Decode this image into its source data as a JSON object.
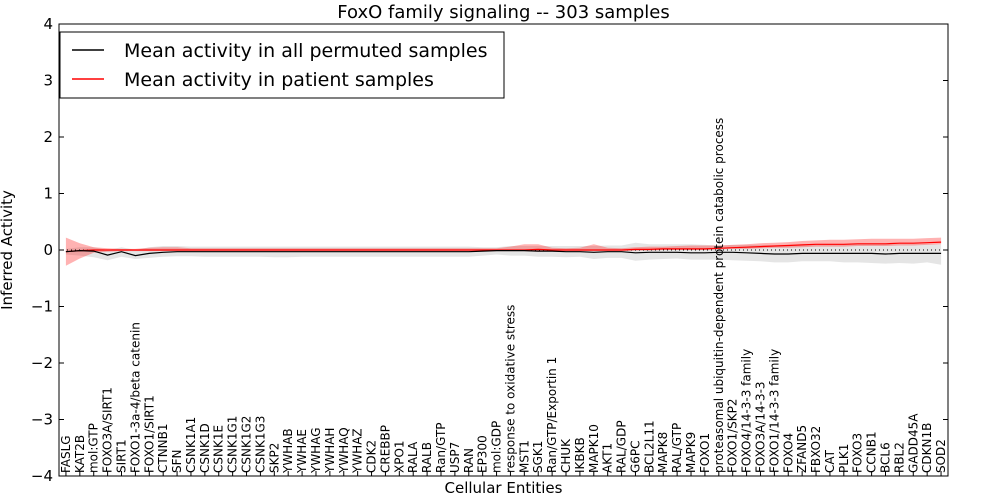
{
  "chart_data": {
    "type": "line",
    "title": "FoxO family signaling -- 303 samples",
    "xlabel": "Cellular Entities",
    "ylabel": "Inferred Activity",
    "ylim": [
      -4,
      4
    ],
    "yticks": [
      -4,
      -3,
      -2,
      -1,
      0,
      1,
      2,
      3,
      4
    ],
    "ytick_labels": [
      "−4",
      "−3",
      "−2",
      "−1",
      "0",
      "1",
      "2",
      "3",
      "4"
    ],
    "legend_position": "top-left",
    "categories": [
      "FASLG",
      "KAT2B",
      "mol:GTP",
      "FOXO3A/SIRT1",
      "SIRT1",
      "FOXO1-3a-4/beta catenin",
      "FOXO1/SIRT1",
      "CTNNB1",
      "SFN",
      "CSNK1A1",
      "CSNK1D",
      "CSNK1E",
      "CSNK1G1",
      "CSNK1G2",
      "CSNK1G3",
      "SKP2",
      "YWHAB",
      "YWHAE",
      "YWHAG",
      "YWHAH",
      "YWHAQ",
      "YWHAZ",
      "CDK2",
      "CREBBP",
      "XPO1",
      "RALA",
      "RALB",
      "Ran/GTP",
      "USP7",
      "RAN",
      "EP300",
      "mol:GDP",
      "response to oxidative stress",
      "MST1",
      "SGK1",
      "Ran/GTP/Exportin 1",
      "CHUK",
      "IKBKB",
      "MAPK10",
      "AKT1",
      "RAL/GDP",
      "G6PC",
      "BCL2L11",
      "MAPK8",
      "RAL/GTP",
      "MAPK9",
      "FOXO1",
      "proteasomal ubiquitin-dependent protein catabolic process",
      "FOXO1/SKP2",
      "FOXO4/14-3-3 family",
      "FOXO3A/14-3-3",
      "FOXO1/14-3-3 family",
      "FOXO4",
      "ZFAND5",
      "FBXO32",
      "CAT",
      "PLK1",
      "FOXO3",
      "CCNB1",
      "BCL6",
      "RBL2",
      "GADD45A",
      "CDKN1B",
      "SOD2"
    ],
    "series": [
      {
        "name": "Mean activity in all permuted samples",
        "color": "#000000",
        "values": [
          -0.03,
          -0.01,
          -0.02,
          -0.09,
          -0.03,
          -0.1,
          -0.06,
          -0.04,
          -0.03,
          -0.03,
          -0.03,
          -0.03,
          -0.03,
          -0.03,
          -0.03,
          -0.03,
          -0.03,
          -0.03,
          -0.03,
          -0.03,
          -0.03,
          -0.03,
          -0.03,
          -0.03,
          -0.03,
          -0.03,
          -0.03,
          -0.03,
          -0.03,
          -0.03,
          -0.02,
          -0.01,
          -0.01,
          -0.01,
          -0.02,
          -0.02,
          -0.03,
          -0.03,
          -0.04,
          -0.03,
          -0.03,
          -0.05,
          -0.04,
          -0.04,
          -0.04,
          -0.05,
          -0.05,
          -0.04,
          -0.04,
          -0.05,
          -0.06,
          -0.07,
          -0.07,
          -0.06,
          -0.06,
          -0.06,
          -0.06,
          -0.06,
          -0.06,
          -0.07,
          -0.06,
          -0.06,
          -0.06,
          -0.06
        ],
        "band_lower": [
          -0.08,
          -0.1,
          -0.13,
          -0.18,
          -0.12,
          -0.16,
          -0.14,
          -0.12,
          -0.11,
          -0.11,
          -0.12,
          -0.12,
          -0.12,
          -0.12,
          -0.12,
          -0.13,
          -0.13,
          -0.12,
          -0.12,
          -0.12,
          -0.12,
          -0.12,
          -0.12,
          -0.12,
          -0.12,
          -0.12,
          -0.12,
          -0.12,
          -0.12,
          -0.12,
          -0.1,
          -0.08,
          -0.1,
          -0.1,
          -0.12,
          -0.12,
          -0.13,
          -0.12,
          -0.16,
          -0.14,
          -0.14,
          -0.19,
          -0.17,
          -0.16,
          -0.15,
          -0.17,
          -0.17,
          -0.17,
          -0.18,
          -0.19,
          -0.2,
          -0.22,
          -0.22,
          -0.2,
          -0.2,
          -0.2,
          -0.22,
          -0.22,
          -0.23,
          -0.24,
          -0.23,
          -0.24,
          -0.22,
          -0.26
        ],
        "band_upper": [
          0.02,
          0.05,
          0.05,
          0.0,
          0.05,
          0.0,
          0.05,
          0.07,
          0.07,
          0.06,
          0.06,
          0.06,
          0.06,
          0.06,
          0.06,
          0.06,
          0.06,
          0.06,
          0.06,
          0.06,
          0.06,
          0.06,
          0.06,
          0.06,
          0.06,
          0.06,
          0.06,
          0.06,
          0.06,
          0.06,
          0.05,
          0.05,
          0.07,
          0.07,
          0.07,
          0.07,
          0.07,
          0.07,
          0.07,
          0.08,
          0.08,
          0.13,
          0.1,
          0.1,
          0.1,
          0.1,
          0.09,
          0.08,
          0.09,
          0.09,
          0.09,
          0.08,
          0.08,
          0.09,
          0.09,
          0.1,
          0.1,
          0.1,
          0.1,
          0.1,
          0.1,
          0.1,
          0.1,
          0.1
        ]
      },
      {
        "name": "Mean activity in patient samples",
        "color": "#ff0000",
        "values": [
          -0.03,
          -0.01,
          0.0,
          0.0,
          0.0,
          0.0,
          0.0,
          0.0,
          0.0,
          0.0,
          0.0,
          0.0,
          0.0,
          0.0,
          0.0,
          0.0,
          0.0,
          0.0,
          0.0,
          0.0,
          0.0,
          0.0,
          0.0,
          0.0,
          0.0,
          0.0,
          0.0,
          0.0,
          0.0,
          0.0,
          0.0,
          0.0,
          0.0,
          0.0,
          0.01,
          0.0,
          0.0,
          0.0,
          0.0,
          0.0,
          0.0,
          0.01,
          0.01,
          0.02,
          0.02,
          0.02,
          0.02,
          0.03,
          0.04,
          0.05,
          0.06,
          0.07,
          0.08,
          0.09,
          0.1,
          0.1,
          0.1,
          0.11,
          0.11,
          0.11,
          0.12,
          0.12,
          0.13,
          0.14
        ],
        "band_lower": [
          -0.28,
          -0.15,
          -0.05,
          -0.03,
          -0.02,
          -0.02,
          -0.02,
          -0.02,
          -0.02,
          -0.02,
          -0.02,
          -0.02,
          -0.02,
          -0.02,
          -0.02,
          -0.02,
          -0.02,
          -0.02,
          -0.02,
          -0.02,
          -0.02,
          -0.02,
          -0.02,
          -0.02,
          -0.02,
          -0.02,
          -0.02,
          -0.02,
          -0.02,
          -0.02,
          -0.02,
          -0.02,
          -0.02,
          -0.02,
          -0.03,
          -0.02,
          -0.02,
          -0.02,
          -0.02,
          -0.02,
          -0.02,
          -0.01,
          -0.01,
          0.0,
          0.0,
          0.0,
          0.0,
          0.01,
          0.02,
          0.02,
          0.03,
          0.04,
          0.04,
          0.05,
          0.06,
          0.06,
          0.06,
          0.07,
          0.07,
          0.07,
          0.08,
          0.08,
          0.09,
          0.1
        ],
        "band_upper": [
          0.22,
          0.12,
          0.05,
          0.03,
          0.02,
          0.02,
          0.04,
          0.05,
          0.05,
          0.03,
          0.03,
          0.03,
          0.03,
          0.03,
          0.03,
          0.03,
          0.03,
          0.03,
          0.03,
          0.03,
          0.03,
          0.03,
          0.03,
          0.03,
          0.03,
          0.03,
          0.03,
          0.03,
          0.03,
          0.03,
          0.03,
          0.03,
          0.06,
          0.1,
          0.1,
          0.04,
          0.03,
          0.04,
          0.1,
          0.04,
          0.03,
          0.05,
          0.06,
          0.06,
          0.07,
          0.08,
          0.08,
          0.08,
          0.09,
          0.1,
          0.12,
          0.13,
          0.14,
          0.16,
          0.17,
          0.18,
          0.18,
          0.19,
          0.2,
          0.2,
          0.2,
          0.2,
          0.21,
          0.22
        ]
      }
    ],
    "reference_line": {
      "value": 0,
      "style": "dotted"
    }
  }
}
